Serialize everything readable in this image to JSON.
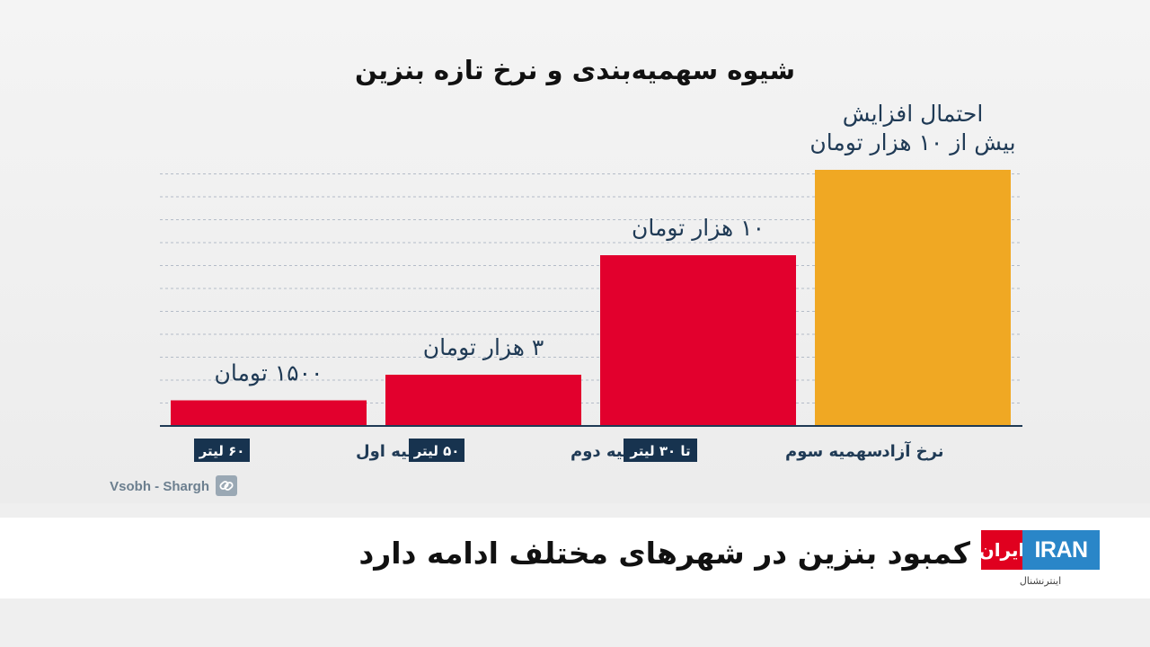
{
  "chart_data": {
    "type": "bar",
    "title": "شیوه سهمیه‌بندی و نرخ تازه بنزین",
    "categories": [
      "سهمیه اول",
      "سهمیه دوم",
      "سهمیه سوم",
      "نرخ آزاد"
    ],
    "badges": [
      "۶۰ لیتر",
      "۵۰ لیتر",
      "تا ۳۰ لیتر",
      ""
    ],
    "values": [
      1500,
      3000,
      10000,
      15000
    ],
    "value_labels": [
      [
        "۱۵۰۰ تومان"
      ],
      [
        "۳ هزار تومان"
      ],
      [
        "۱۰ هزار تومان"
      ],
      [
        "احتمال افزایش",
        "بیش از ۱۰ هزار تومان"
      ]
    ],
    "colors": [
      "#e2002d",
      "#e2002d",
      "#e2002d",
      "#f0a823"
    ],
    "gridlines": true,
    "source": "Vsobh - Shargh"
  },
  "colors": {
    "badge_bg": "#17334f",
    "axis": "#1f3a55",
    "grid": "#b4bcc8"
  },
  "headline": "کمبود بنزین در شهرهای مختلف ادامه دارد",
  "logo": {
    "red_text": "ایران",
    "blue_text": "IRAN",
    "subtitle": "اینترنشنال"
  }
}
